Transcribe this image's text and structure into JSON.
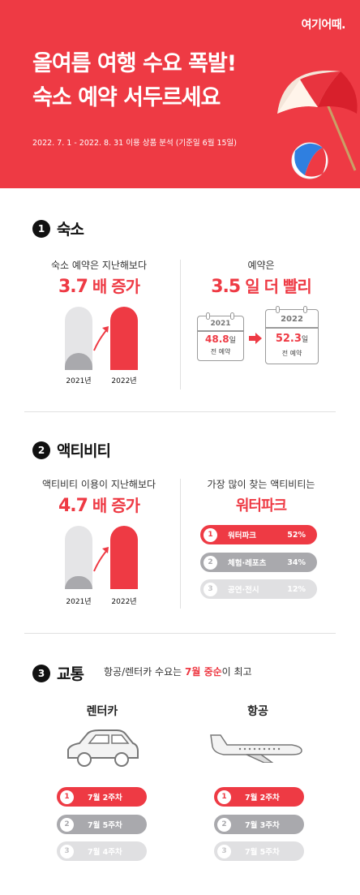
{
  "header": {
    "logo": "여기어때.",
    "title_line1": "올여름 여행 수요 폭발!",
    "title_line2": "숙소 예약 서두르세요",
    "subtitle": "2022. 7. 1 - 2022. 8. 31 이용 상품 분석 (기준일 6월 15일)"
  },
  "colors": {
    "accent": "#ee3a44",
    "gray_dark": "#a9a9ad",
    "gray_light": "#e0e0e2"
  },
  "section1": {
    "number": "1",
    "title": "숙소",
    "left": {
      "caption": "숙소 예약은 지난해보다",
      "stat_num": "3.7",
      "stat_suffix": "배 증가",
      "bars": [
        {
          "label": "2021년",
          "level": 0.27
        },
        {
          "label": "2022년",
          "level": 1.0
        }
      ]
    },
    "right": {
      "caption": "예약은",
      "stat_num": "3.5",
      "stat_suffix": "일 더 빨리",
      "cal_2021": {
        "year": "2021",
        "value": "48.8",
        "unit": "일",
        "desc": "전 예약"
      },
      "cal_2022": {
        "year": "2022",
        "value": "52.3",
        "unit": "일",
        "desc": "전 예약"
      }
    }
  },
  "section2": {
    "number": "2",
    "title": "액티비티",
    "left": {
      "caption": "액티비티 이용이 지난해보다",
      "stat_num": "4.7",
      "stat_suffix": "배 증가",
      "bars": [
        {
          "label": "2021년",
          "level": 0.21
        },
        {
          "label": "2022년",
          "level": 1.0
        }
      ]
    },
    "right": {
      "caption": "가장 많이 찾는 액티비티는",
      "highlight": "워터파크",
      "ranks": [
        {
          "num": "1",
          "label": "워터파크",
          "value": "52%"
        },
        {
          "num": "2",
          "label": "체험·레포츠",
          "value": "34%"
        },
        {
          "num": "3",
          "label": "공연·전시",
          "value": "12%"
        }
      ]
    }
  },
  "section3": {
    "number": "3",
    "title": "교통",
    "caption_pre": "항공/렌터카 수요는 ",
    "caption_hl": "7월 중순",
    "caption_post": "이 최고",
    "rentcar": {
      "title": "렌터카",
      "ranks": [
        {
          "num": "1",
          "label": "7월 2주차"
        },
        {
          "num": "2",
          "label": "7월 5주차"
        },
        {
          "num": "3",
          "label": "7월 4주차"
        }
      ]
    },
    "flight": {
      "title": "항공",
      "ranks": [
        {
          "num": "1",
          "label": "7월 2주차"
        },
        {
          "num": "2",
          "label": "7월 3주차"
        },
        {
          "num": "3",
          "label": "7월 5주차"
        }
      ]
    }
  }
}
